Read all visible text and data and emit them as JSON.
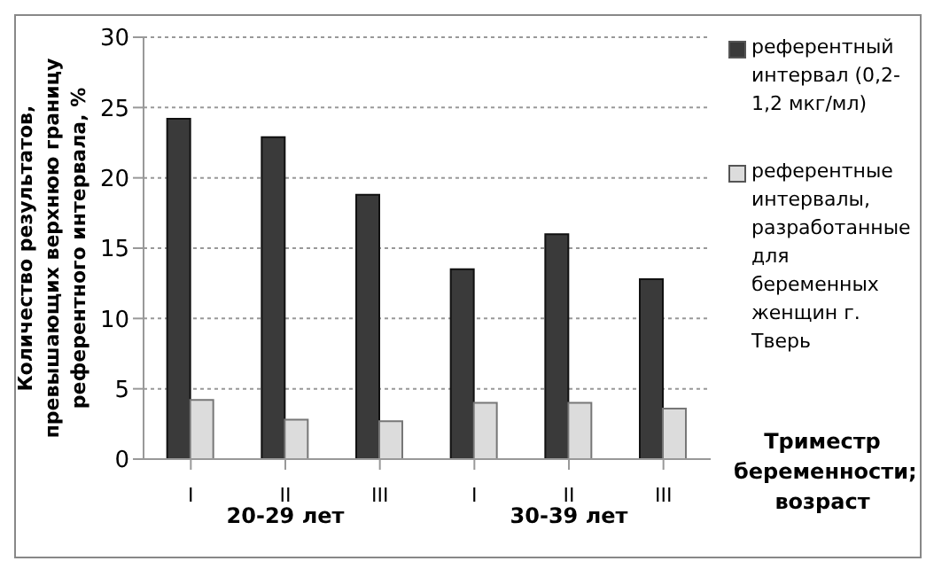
{
  "chart_data": {
    "type": "bar",
    "ylabel": "Количество результатов, превышающих верхнюю границу референтного интервала, %",
    "xlabel": "Триместр беременности; возраст",
    "categories": [
      "I",
      "II",
      "III",
      "I",
      "II",
      "III"
    ],
    "series": [
      {
        "name": "референтный интервал (0,2-1,2 мкг/мл)",
        "color": "#3a3a3a",
        "values": [
          24.2,
          22.9,
          18.8,
          13.5,
          16.0,
          12.8
        ]
      },
      {
        "name": "референтные интервалы, разработанные для беременных женщин г. Тверь",
        "color": "#dcdcdc",
        "values": [
          4.2,
          2.8,
          2.7,
          4.0,
          4.0,
          3.6
        ]
      }
    ],
    "annotations": [
      "20-29 лет",
      "30-39 лет"
    ],
    "ylim": [
      0,
      30
    ],
    "yticks": [
      0,
      5,
      10,
      15,
      20,
      25,
      30
    ],
    "grid": "y",
    "legend": "right"
  }
}
